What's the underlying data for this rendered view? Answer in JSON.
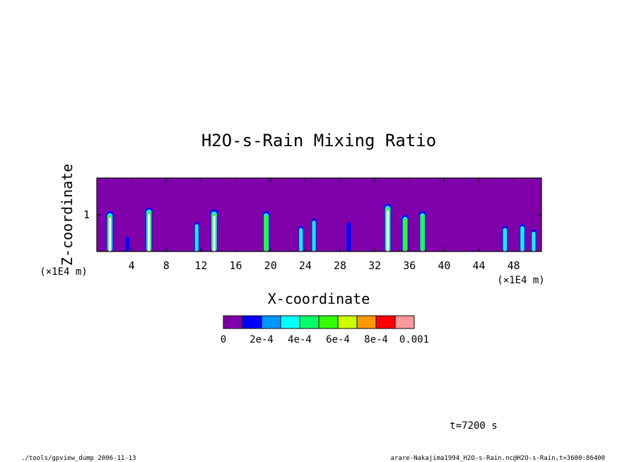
{
  "chart_data": {
    "type": "heatmap",
    "title": "H2O-s-Rain Mixing Ratio",
    "xlabel": "X-coordinate",
    "ylabel": "Z-coordinate",
    "x_unit": "(×1E4 m)",
    "y_unit": "(×1E4 m)",
    "x_ticks": [
      "4",
      "8",
      "12",
      "16",
      "20",
      "24",
      "28",
      "32",
      "36",
      "40",
      "44",
      "48"
    ],
    "y_ticks": [
      "1"
    ],
    "xlim": [
      0,
      51.2
    ],
    "ylim": [
      0,
      2
    ],
    "background_color": "#7f00aa",
    "colorbar": {
      "colors": [
        "#7f00aa",
        "#0000ff",
        "#0096ff",
        "#00ffff",
        "#00ff66",
        "#33ff00",
        "#ccff00",
        "#ff9900",
        "#ff0000",
        "#ff9999"
      ],
      "labels": [
        "0",
        "2e-4",
        "4e-4",
        "6e-4",
        "8e-4",
        "0.001"
      ]
    },
    "rain_shafts": [
      {
        "x": 1.5,
        "top": 1.1,
        "intensity": 0.95
      },
      {
        "x": 3.5,
        "top": 0.4,
        "intensity": 0.3
      },
      {
        "x": 6.0,
        "top": 1.2,
        "intensity": 0.9
      },
      {
        "x": 11.5,
        "top": 0.8,
        "intensity": 0.4
      },
      {
        "x": 13.5,
        "top": 1.15,
        "intensity": 1.0
      },
      {
        "x": 19.5,
        "top": 1.1,
        "intensity": 0.85
      },
      {
        "x": 23.5,
        "top": 0.7,
        "intensity": 0.45
      },
      {
        "x": 25.0,
        "top": 0.9,
        "intensity": 0.4
      },
      {
        "x": 29.0,
        "top": 0.8,
        "intensity": 0.35
      },
      {
        "x": 33.5,
        "top": 1.3,
        "intensity": 1.0
      },
      {
        "x": 35.5,
        "top": 1.0,
        "intensity": 0.8
      },
      {
        "x": 37.5,
        "top": 1.1,
        "intensity": 0.75
      },
      {
        "x": 47.0,
        "top": 0.7,
        "intensity": 0.5
      },
      {
        "x": 49.0,
        "top": 0.75,
        "intensity": 0.5
      },
      {
        "x": 50.3,
        "top": 0.6,
        "intensity": 0.45
      }
    ]
  },
  "footer": {
    "time": "t=7200 s",
    "left": "./tools/gpview_dump  2006-11-13",
    "right": "arare-Nakajima1994_H2O-s-Rain.nc@H2O-s-Rain,t=3600:86400"
  }
}
